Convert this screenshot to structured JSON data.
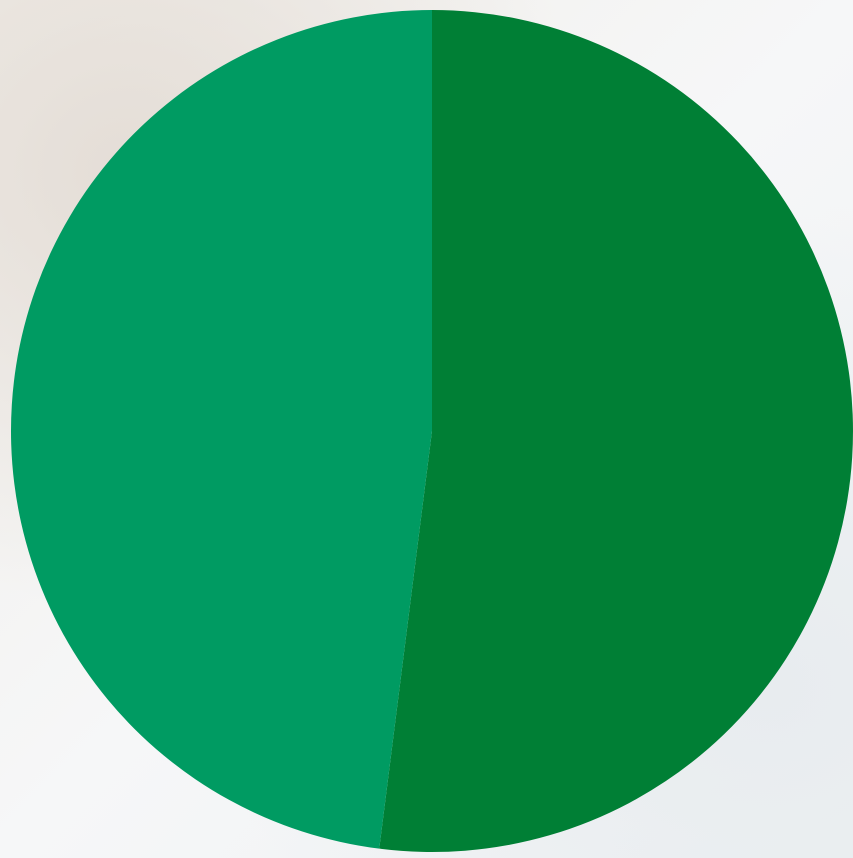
{
  "chart_data": {
    "type": "pie",
    "values": [
      52,
      48
    ],
    "colors": [
      "#007f35",
      "#009b62"
    ]
  }
}
